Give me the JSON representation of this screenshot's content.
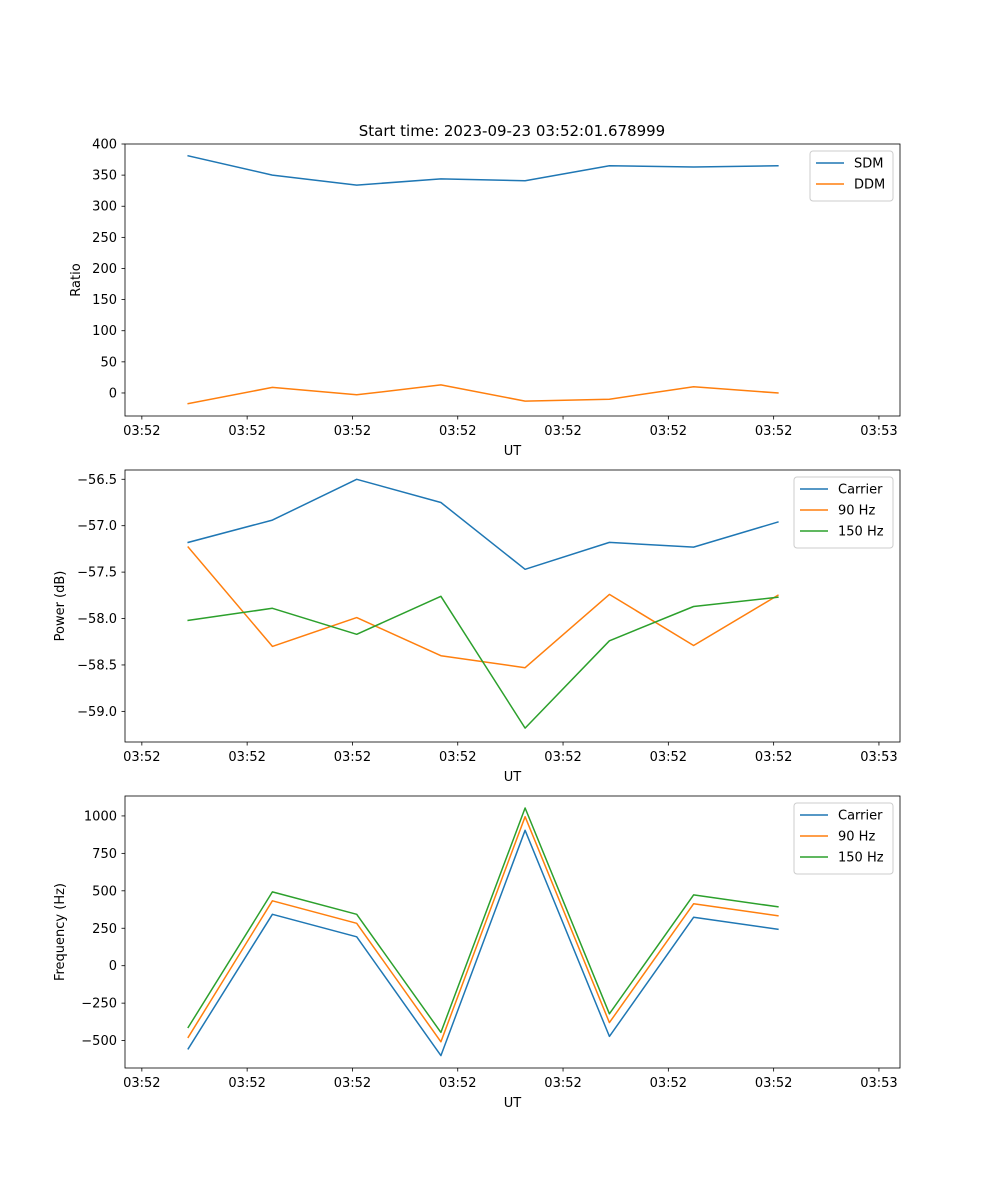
{
  "figure_title": "Start time: 2023-09-23 03:52:01.678999",
  "colors": {
    "blue": "#1f77b4",
    "orange": "#ff7f0e",
    "green": "#2ca02c",
    "axis": "#000000",
    "legend_border": "#cccccc"
  },
  "chart_data": [
    {
      "type": "line",
      "title": "Start time: 2023-09-23 03:52:01.678999",
      "xlabel": "UT",
      "ylabel": "Ratio",
      "x_tick_labels": [
        "03:52",
        "03:52",
        "03:52",
        "03:52",
        "03:52",
        "03:52",
        "03:52"
      ],
      "x_last_tick_label": "03:53",
      "xlim": [
        0,
        920
      ],
      "x": [
        75,
        175,
        275,
        375,
        475,
        575,
        675,
        775
      ],
      "ylim": [
        -37,
        400
      ],
      "yticks": [
        0,
        50,
        100,
        150,
        200,
        250,
        300,
        350,
        400
      ],
      "ytick_labels": [
        "0",
        "50",
        "100",
        "150",
        "200",
        "250",
        "300",
        "350",
        "400"
      ],
      "legend": "top-right",
      "series": [
        {
          "name": "SDM",
          "color": "#1f77b4",
          "values": [
            381,
            350,
            334,
            344,
            341,
            365,
            363,
            365
          ]
        },
        {
          "name": "DDM",
          "color": "#ff7f0e",
          "values": [
            -17,
            9,
            -3,
            13,
            -13,
            -10,
            10,
            0
          ]
        }
      ]
    },
    {
      "type": "line",
      "title": "",
      "xlabel": "UT",
      "ylabel": "Power (dB)",
      "x_tick_labels": [
        "03:52",
        "03:52",
        "03:52",
        "03:52",
        "03:52",
        "03:52",
        "03:52"
      ],
      "x_last_tick_label": "03:53",
      "xlim": [
        0,
        920
      ],
      "x": [
        75,
        175,
        275,
        375,
        475,
        575,
        675,
        775
      ],
      "ylim": [
        -59.33,
        -56.4
      ],
      "yticks": [
        -59.0,
        -58.5,
        -58.0,
        -57.5,
        -57.0,
        -56.5
      ],
      "ytick_labels": [
        "−59.0",
        "−58.5",
        "−58.0",
        "−57.5",
        "−57.0",
        "−56.5"
      ],
      "legend": "top-right",
      "series": [
        {
          "name": "Carrier",
          "color": "#1f77b4",
          "values": [
            -57.18,
            -56.94,
            -56.5,
            -56.75,
            -57.47,
            -57.18,
            -57.23,
            -56.96
          ]
        },
        {
          "name": "90 Hz",
          "color": "#ff7f0e",
          "values": [
            -57.23,
            -58.3,
            -57.99,
            -58.4,
            -58.53,
            -57.74,
            -58.29,
            -57.75
          ]
        },
        {
          "name": "150 Hz",
          "color": "#2ca02c",
          "values": [
            -58.02,
            -57.89,
            -58.17,
            -57.76,
            -59.18,
            -58.24,
            -57.87,
            -57.77
          ]
        }
      ]
    },
    {
      "type": "line",
      "title": "",
      "xlabel": "UT",
      "ylabel": "Frequency (Hz)",
      "x_tick_labels": [
        "03:52",
        "03:52",
        "03:52",
        "03:52",
        "03:52",
        "03:52",
        "03:52"
      ],
      "x_last_tick_label": "03:53",
      "xlim": [
        0,
        920
      ],
      "x": [
        75,
        175,
        275,
        375,
        475,
        575,
        675,
        775
      ],
      "ylim": [
        -683,
        1133
      ],
      "yticks": [
        -500,
        -250,
        0,
        250,
        500,
        750,
        1000
      ],
      "ytick_labels": [
        "−500",
        "−250",
        "0",
        "250",
        "500",
        "750",
        "1000"
      ],
      "legend": "top-right",
      "series": [
        {
          "name": "Carrier",
          "color": "#1f77b4",
          "values": [
            -555,
            343,
            193,
            -600,
            904,
            -472,
            323,
            243
          ]
        },
        {
          "name": "90 Hz",
          "color": "#ff7f0e",
          "values": [
            -478,
            433,
            283,
            -508,
            995,
            -380,
            413,
            333
          ]
        },
        {
          "name": "150 Hz",
          "color": "#2ca02c",
          "values": [
            -412,
            493,
            343,
            -445,
            1053,
            -321,
            473,
            393
          ]
        }
      ]
    }
  ]
}
